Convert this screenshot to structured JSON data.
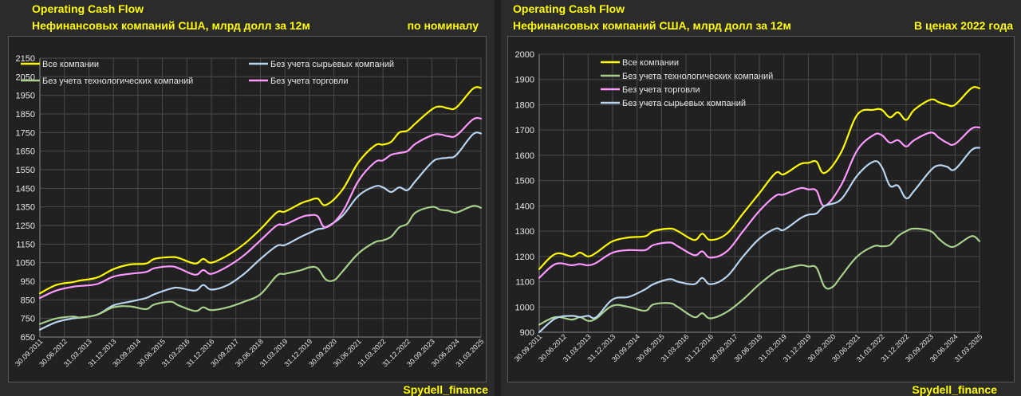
{
  "charts": [
    {
      "title1": "Operating Cash Flow",
      "title2": "Нефинансовых компаний США, млрд долл за 12м",
      "note": "по номиналу",
      "source": "Spydell_finance"
    },
    {
      "title1": "Operating Cash Flow",
      "title2": "Нефинансовых компаний США, млрд долл за 12м",
      "note": "В ценах 2022 года",
      "source": "Spydell_finance"
    }
  ],
  "chart_data": [
    {
      "type": "line",
      "ylim": [
        650,
        2150
      ],
      "yticks": [
        650,
        750,
        850,
        950,
        1050,
        1150,
        1250,
        1350,
        1450,
        1550,
        1650,
        1750,
        1850,
        1950,
        2050,
        2150
      ],
      "x_range": [
        2011.75,
        2025.25
      ],
      "xticks": [
        "30.09.2011",
        "30.06.2012",
        "31.03.2013",
        "31.12.2013",
        "30.09.2014",
        "30.06.2015",
        "31.03.2016",
        "31.12.2016",
        "30.09.2017",
        "30.06.2018",
        "31.03.2019",
        "31.12.2019",
        "30.09.2020",
        "30.06.2021",
        "31.03.2022",
        "31.12.2022",
        "30.09.2023",
        "30.06.2024",
        "31.03.2025"
      ],
      "legend_placement": "top, two columns",
      "grid": true,
      "series": [
        {
          "name": "Все компании",
          "color": "#ffff00",
          "x": [
            2011.75,
            2012.25,
            2012.75,
            2013.0,
            2013.5,
            2014.0,
            2014.5,
            2015.0,
            2015.25,
            2015.75,
            2016.0,
            2016.5,
            2016.75,
            2017.0,
            2017.5,
            2018.0,
            2018.5,
            2019.0,
            2019.25,
            2019.75,
            2020.0,
            2020.25,
            2020.5,
            2021.0,
            2021.5,
            2022.0,
            2022.25,
            2022.5,
            2022.75,
            2023.0,
            2023.25,
            2023.75,
            2024.0,
            2024.25,
            2024.5,
            2025.0,
            2025.25
          ],
          "y": [
            885,
            930,
            945,
            955,
            970,
            1015,
            1040,
            1045,
            1070,
            1080,
            1075,
            1045,
            1070,
            1050,
            1090,
            1150,
            1230,
            1320,
            1325,
            1370,
            1385,
            1395,
            1360,
            1440,
            1590,
            1680,
            1685,
            1700,
            1750,
            1760,
            1800,
            1875,
            1890,
            1880,
            1885,
            1985,
            1990
          ]
        },
        {
          "name": "Без учета сырьевых компаний",
          "color": "#b8d4ee",
          "x": [
            2011.75,
            2012.25,
            2012.75,
            2013.0,
            2013.5,
            2014.0,
            2014.5,
            2015.0,
            2015.25,
            2015.75,
            2016.0,
            2016.5,
            2016.75,
            2017.0,
            2017.5,
            2018.0,
            2018.5,
            2019.0,
            2019.25,
            2019.75,
            2020.0,
            2020.25,
            2020.5,
            2021.0,
            2021.5,
            2022.0,
            2022.25,
            2022.5,
            2022.75,
            2023.0,
            2023.25,
            2023.75,
            2024.0,
            2024.25,
            2024.5,
            2025.0,
            2025.25
          ],
          "y": [
            690,
            730,
            750,
            755,
            770,
            820,
            840,
            860,
            880,
            910,
            915,
            900,
            930,
            905,
            930,
            990,
            1070,
            1140,
            1145,
            1190,
            1210,
            1230,
            1240,
            1300,
            1410,
            1460,
            1455,
            1430,
            1455,
            1440,
            1490,
            1590,
            1610,
            1615,
            1630,
            1740,
            1745
          ]
        },
        {
          "name": "Без учета технологических компаний",
          "color": "#a8d08d",
          "x": [
            2011.75,
            2012.25,
            2012.75,
            2013.0,
            2013.5,
            2014.0,
            2014.5,
            2015.0,
            2015.25,
            2015.75,
            2016.0,
            2016.5,
            2016.75,
            2017.0,
            2017.5,
            2018.0,
            2018.5,
            2019.0,
            2019.25,
            2019.75,
            2020.0,
            2020.25,
            2020.5,
            2020.75,
            2021.0,
            2021.5,
            2022.0,
            2022.25,
            2022.5,
            2022.75,
            2023.0,
            2023.25,
            2023.75,
            2024.0,
            2024.25,
            2024.5,
            2025.0,
            2025.25
          ],
          "y": [
            720,
            750,
            760,
            755,
            770,
            810,
            815,
            800,
            825,
            840,
            820,
            790,
            810,
            795,
            810,
            840,
            880,
            980,
            990,
            1010,
            1025,
            1020,
            960,
            955,
            1000,
            1100,
            1160,
            1170,
            1190,
            1240,
            1260,
            1320,
            1350,
            1335,
            1330,
            1320,
            1355,
            1345
          ]
        },
        {
          "name": "Без учета торговли",
          "color": "#ff99ff",
          "x": [
            2011.75,
            2012.25,
            2012.75,
            2013.0,
            2013.5,
            2014.0,
            2014.5,
            2015.0,
            2015.25,
            2015.75,
            2016.0,
            2016.5,
            2016.75,
            2017.0,
            2017.5,
            2018.0,
            2018.5,
            2019.0,
            2019.25,
            2019.75,
            2020.0,
            2020.25,
            2020.5,
            2021.0,
            2021.5,
            2022.0,
            2022.25,
            2022.5,
            2022.75,
            2023.0,
            2023.25,
            2023.75,
            2024.0,
            2024.25,
            2024.5,
            2025.0,
            2025.25
          ],
          "y": [
            860,
            900,
            920,
            925,
            935,
            975,
            990,
            1000,
            1020,
            1030,
            1020,
            985,
            1010,
            990,
            1030,
            1090,
            1170,
            1250,
            1255,
            1295,
            1305,
            1300,
            1240,
            1320,
            1490,
            1590,
            1600,
            1630,
            1640,
            1650,
            1690,
            1735,
            1740,
            1730,
            1735,
            1820,
            1825
          ]
        }
      ]
    },
    {
      "type": "line",
      "ylim": [
        900,
        2000
      ],
      "yticks": [
        900,
        1000,
        1100,
        1200,
        1300,
        1400,
        1500,
        1600,
        1700,
        1800,
        1900,
        2000
      ],
      "x_range": [
        2011.75,
        2025.25
      ],
      "xticks": [
        "30.09.2011",
        "30.06.2012",
        "31.03.2013",
        "31.12.2013",
        "30.09.2014",
        "30.06.2015",
        "31.03.2016",
        "31.12.2016",
        "30.09.2017",
        "30.06.2018",
        "31.03.2019",
        "31.12.2019",
        "30.09.2020",
        "30.06.2021",
        "31.03.2022",
        "31.12.2022",
        "30.09.2023",
        "30.06.2024",
        "31.03.2025"
      ],
      "legend_placement": "top-left",
      "grid": true,
      "series": [
        {
          "name": "Все компании",
          "color": "#ffff00",
          "x": [
            2011.75,
            2012.25,
            2012.75,
            2013.0,
            2013.25,
            2013.5,
            2014.0,
            2014.5,
            2015.0,
            2015.25,
            2015.75,
            2016.0,
            2016.5,
            2016.75,
            2017.0,
            2017.5,
            2018.0,
            2018.5,
            2019.0,
            2019.25,
            2019.75,
            2020.0,
            2020.25,
            2020.5,
            2021.0,
            2021.5,
            2022.0,
            2022.25,
            2022.5,
            2022.75,
            2023.0,
            2023.25,
            2023.75,
            2024.0,
            2024.25,
            2024.5,
            2025.0,
            2025.25
          ],
          "y": [
            1150,
            1210,
            1200,
            1215,
            1200,
            1215,
            1260,
            1275,
            1280,
            1300,
            1310,
            1300,
            1265,
            1290,
            1265,
            1290,
            1370,
            1450,
            1530,
            1525,
            1565,
            1570,
            1575,
            1530,
            1610,
            1760,
            1780,
            1780,
            1750,
            1770,
            1740,
            1780,
            1820,
            1810,
            1800,
            1800,
            1865,
            1865
          ]
        },
        {
          "name": "Без учета технологических компаний",
          "color": "#a8d08d",
          "x": [
            2011.75,
            2012.25,
            2012.75,
            2013.0,
            2013.25,
            2013.5,
            2014.0,
            2014.5,
            2015.0,
            2015.25,
            2015.75,
            2016.0,
            2016.5,
            2016.75,
            2017.0,
            2017.5,
            2018.0,
            2018.5,
            2019.0,
            2019.25,
            2019.75,
            2020.0,
            2020.25,
            2020.5,
            2020.75,
            2021.0,
            2021.5,
            2022.0,
            2022.25,
            2022.5,
            2022.75,
            2023.0,
            2023.25,
            2023.75,
            2024.0,
            2024.25,
            2024.5,
            2025.0,
            2025.25
          ],
          "y": [
            930,
            960,
            950,
            960,
            945,
            955,
            1005,
            1000,
            985,
            1010,
            1015,
            1000,
            960,
            975,
            955,
            980,
            1030,
            1090,
            1140,
            1150,
            1165,
            1160,
            1155,
            1080,
            1080,
            1120,
            1200,
            1240,
            1240,
            1245,
            1280,
            1300,
            1310,
            1300,
            1270,
            1245,
            1240,
            1280,
            1260
          ]
        },
        {
          "name": "Без учета торговли",
          "color": "#ff99ff",
          "x": [
            2011.75,
            2012.25,
            2012.75,
            2013.0,
            2013.25,
            2013.5,
            2014.0,
            2014.5,
            2015.0,
            2015.25,
            2015.75,
            2016.0,
            2016.5,
            2016.75,
            2017.0,
            2017.5,
            2018.0,
            2018.5,
            2019.0,
            2019.25,
            2019.75,
            2020.0,
            2020.25,
            2020.5,
            2021.0,
            2021.5,
            2022.0,
            2022.25,
            2022.5,
            2022.75,
            2023.0,
            2023.25,
            2023.75,
            2024.0,
            2024.25,
            2024.5,
            2025.0,
            2025.25
          ],
          "y": [
            1115,
            1170,
            1165,
            1170,
            1165,
            1175,
            1215,
            1225,
            1225,
            1245,
            1255,
            1240,
            1205,
            1220,
            1195,
            1220,
            1300,
            1380,
            1440,
            1445,
            1470,
            1465,
            1460,
            1400,
            1480,
            1620,
            1680,
            1680,
            1650,
            1660,
            1635,
            1660,
            1690,
            1670,
            1650,
            1645,
            1705,
            1710
          ]
        },
        {
          "name": "Без учета сырьевых компаний",
          "color": "#b8d4ee",
          "x": [
            2011.75,
            2012.25,
            2012.75,
            2013.0,
            2013.25,
            2013.5,
            2014.0,
            2014.5,
            2015.0,
            2015.25,
            2015.75,
            2016.0,
            2016.5,
            2016.75,
            2017.0,
            2017.5,
            2018.0,
            2018.5,
            2019.0,
            2019.25,
            2019.75,
            2020.0,
            2020.25,
            2020.5,
            2021.0,
            2021.5,
            2022.0,
            2022.25,
            2022.5,
            2022.75,
            2023.0,
            2023.25,
            2023.75,
            2024.0,
            2024.25,
            2024.5,
            2025.0,
            2025.25
          ],
          "y": [
            900,
            955,
            965,
            960,
            965,
            960,
            1030,
            1040,
            1070,
            1090,
            1110,
            1100,
            1090,
            1115,
            1090,
            1120,
            1200,
            1270,
            1310,
            1305,
            1350,
            1365,
            1370,
            1400,
            1425,
            1520,
            1575,
            1555,
            1480,
            1480,
            1430,
            1460,
            1540,
            1560,
            1555,
            1545,
            1620,
            1630
          ]
        }
      ]
    }
  ]
}
